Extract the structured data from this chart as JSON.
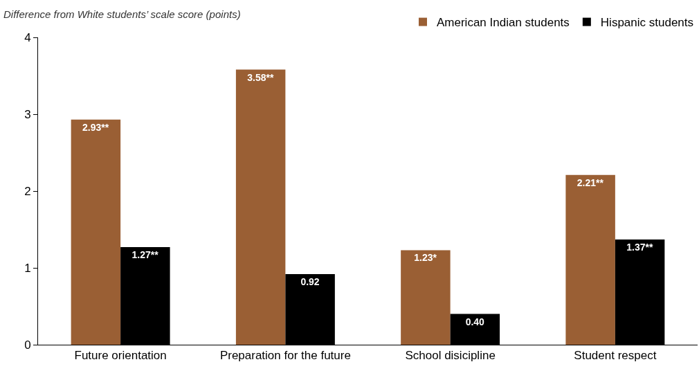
{
  "chart_data": {
    "type": "bar",
    "ylabel": "Difference from White students’ scale score (points)",
    "categories": [
      "Future orientation",
      "Preparation for the future",
      "School disicipline",
      "Student respect"
    ],
    "series": [
      {
        "name": "American Indian students",
        "color": "#9a5f34",
        "values": [
          2.93,
          3.58,
          1.23,
          2.21
        ],
        "value_labels": [
          "2.93**",
          "3.58**",
          "1.23*",
          "2.21**"
        ]
      },
      {
        "name": "Hispanic students",
        "color": "#000000",
        "values": [
          1.27,
          0.92,
          0.4,
          1.37
        ],
        "value_labels": [
          "1.27**",
          "0.92",
          "0.40",
          "1.37**"
        ]
      }
    ],
    "ylim": [
      0,
      4
    ],
    "yticks": [
      0,
      1,
      2,
      3,
      4
    ],
    "grid": false,
    "legend": "top right"
  }
}
